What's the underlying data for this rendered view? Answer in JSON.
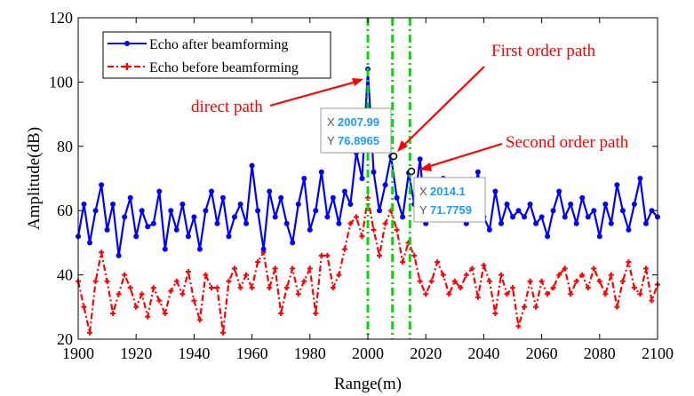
{
  "chart_data": {
    "type": "line",
    "xlabel": "Range(m)",
    "ylabel": "Amplitude(dB)",
    "xlim": [
      1900,
      2100
    ],
    "ylim": [
      20,
      120
    ],
    "xticks": [
      "1900",
      "1920",
      "1940",
      "1960",
      "1980",
      "2000",
      "2020",
      "2040",
      "2060",
      "2080",
      "2100"
    ],
    "yticks": [
      "20",
      "40",
      "60",
      "80",
      "100",
      "120"
    ],
    "legend_position": "top-left",
    "series": [
      {
        "name": "Echo after beamforming",
        "color": "#0000ff",
        "marker": "dot",
        "x": [
          1900,
          1902,
          1904,
          1906,
          1908,
          1910,
          1912,
          1914,
          1916,
          1918,
          1920,
          1922,
          1924,
          1926,
          1928,
          1930,
          1932,
          1934,
          1936,
          1938,
          1940,
          1942,
          1944,
          1946,
          1948,
          1950,
          1952,
          1954,
          1956,
          1958,
          1960,
          1962,
          1964,
          1966,
          1968,
          1970,
          1972,
          1974,
          1976,
          1978,
          1980,
          1982,
          1984,
          1986,
          1988,
          1990,
          1992,
          1994,
          1996,
          1998,
          2000,
          2002,
          2004,
          2006,
          2007.99,
          2010,
          2012,
          2014.1,
          2016,
          2018,
          2020,
          2022,
          2024,
          2026,
          2028,
          2030,
          2032,
          2034,
          2036,
          2038,
          2040,
          2042,
          2044,
          2046,
          2048,
          2050,
          2052,
          2054,
          2056,
          2058,
          2060,
          2062,
          2064,
          2066,
          2068,
          2070,
          2072,
          2074,
          2076,
          2078,
          2080,
          2082,
          2084,
          2086,
          2088,
          2090,
          2092,
          2094,
          2096,
          2098,
          2100
        ],
        "y": [
          52,
          62,
          50,
          60,
          68,
          54,
          62,
          46,
          58,
          64,
          52,
          60,
          55,
          56,
          66,
          48,
          60,
          54,
          62,
          52,
          58,
          48,
          60,
          66,
          56,
          64,
          52,
          58,
          62,
          56,
          74,
          60,
          48,
          66,
          58,
          64,
          56,
          50,
          62,
          70,
          54,
          60,
          72,
          58,
          64,
          56,
          66,
          62,
          78,
          70,
          104,
          72,
          60,
          68,
          76.8965,
          64,
          58,
          71.7759,
          62,
          76,
          56,
          58,
          64,
          70,
          62,
          60,
          66,
          56,
          62,
          72,
          58,
          54,
          66,
          56,
          62,
          58,
          60,
          58,
          62,
          56,
          58,
          52,
          60,
          66,
          58,
          62,
          56,
          64,
          58,
          60,
          52,
          62,
          56,
          68,
          60,
          54,
          62,
          70,
          56,
          60,
          58
        ]
      },
      {
        "name": "Echo before beamforming",
        "color": "#ff0000",
        "marker": "plus",
        "x": [
          1900,
          1902,
          1904,
          1906,
          1908,
          1910,
          1912,
          1914,
          1916,
          1918,
          1920,
          1922,
          1924,
          1926,
          1928,
          1930,
          1932,
          1934,
          1936,
          1938,
          1940,
          1942,
          1944,
          1946,
          1948,
          1950,
          1952,
          1954,
          1956,
          1958,
          1960,
          1962,
          1964,
          1966,
          1968,
          1970,
          1972,
          1974,
          1976,
          1978,
          1980,
          1982,
          1984,
          1986,
          1988,
          1990,
          1992,
          1994,
          1996,
          1998,
          2000,
          2002,
          2004,
          2006,
          2008,
          2010,
          2012,
          2014,
          2016,
          2018,
          2020,
          2022,
          2024,
          2026,
          2028,
          2030,
          2032,
          2034,
          2036,
          2038,
          2040,
          2042,
          2044,
          2046,
          2048,
          2050,
          2052,
          2054,
          2056,
          2058,
          2060,
          2062,
          2064,
          2066,
          2068,
          2070,
          2072,
          2074,
          2076,
          2078,
          2080,
          2082,
          2084,
          2086,
          2088,
          2090,
          2092,
          2094,
          2096,
          2098,
          2100
        ],
        "y": [
          38,
          30,
          22,
          38,
          47,
          38,
          28,
          34,
          40,
          36,
          30,
          34,
          27,
          36,
          32,
          28,
          35,
          38,
          34,
          41,
          32,
          26,
          40,
          36,
          36,
          22,
          38,
          42,
          36,
          40,
          36,
          44,
          47,
          36,
          42,
          28,
          36,
          42,
          34,
          38,
          42,
          28,
          46,
          46,
          36,
          40,
          48,
          56,
          58,
          52,
          64,
          54,
          46,
          56,
          60,
          54,
          44,
          50,
          46,
          38,
          34,
          38,
          44,
          40,
          34,
          38,
          36,
          40,
          42,
          33,
          43,
          38,
          28,
          40,
          34,
          36,
          24,
          30,
          38,
          30,
          38,
          34,
          36,
          40,
          42,
          34,
          38,
          40,
          36,
          42,
          38,
          34,
          40,
          30,
          38,
          44,
          36,
          34,
          42,
          32,
          37
        ]
      }
    ],
    "vertical_lines": [
      2000,
      2008.5,
      2014.5
    ],
    "vertical_line_color": "#00dd00",
    "annotations": [
      {
        "text": "direct path",
        "x": 2000,
        "y": 104
      },
      {
        "text": "First order path",
        "x": 2007.99,
        "y": 76.8965
      },
      {
        "text": "Second order path",
        "x": 2014.1,
        "y": 71.7759
      }
    ],
    "datatips": [
      {
        "x_label": "X",
        "x_value": "2007.99",
        "y_label": "Y",
        "y_value": "76.8965",
        "x": 2007.99,
        "y": 76.8965
      },
      {
        "x_label": "X",
        "x_value": "2014.1",
        "y_label": "Y",
        "y_value": "71.7759",
        "x": 2014.1,
        "y": 71.7759
      }
    ],
    "annotation_color": "#ff0000",
    "datatip_value_color": "#1a9cff"
  }
}
